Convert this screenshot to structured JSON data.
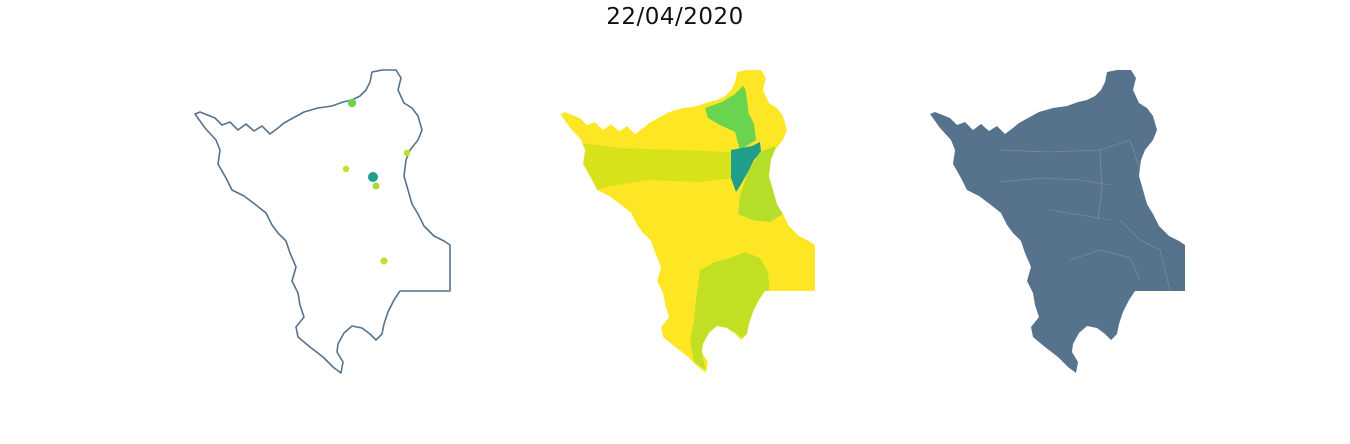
{
  "title": "22/04/2020",
  "colors": {
    "outline": "#57728c",
    "state_fill": "#57728c",
    "background": "#ffffff"
  },
  "panels": [
    {
      "kind": "outline-with-points",
      "points": [
        {
          "color": "#6ad34f"
        },
        {
          "color": "#bfe02a"
        },
        {
          "color": "#bfe02a"
        },
        {
          "color": "#1f9e89"
        },
        {
          "color": "#a6db35"
        },
        {
          "color": "#bfe02a"
        }
      ]
    },
    {
      "kind": "choropleth",
      "regions": [
        {
          "color": "#fde725"
        },
        {
          "color": "#d7e21a"
        },
        {
          "color": "#6ad34f"
        },
        {
          "color": "#fde725"
        },
        {
          "color": "#1f9e89"
        },
        {
          "color": "#b5de2b"
        },
        {
          "color": "#fde725"
        },
        {
          "color": "#c2df23"
        }
      ]
    },
    {
      "kind": "filled-state"
    }
  ]
}
